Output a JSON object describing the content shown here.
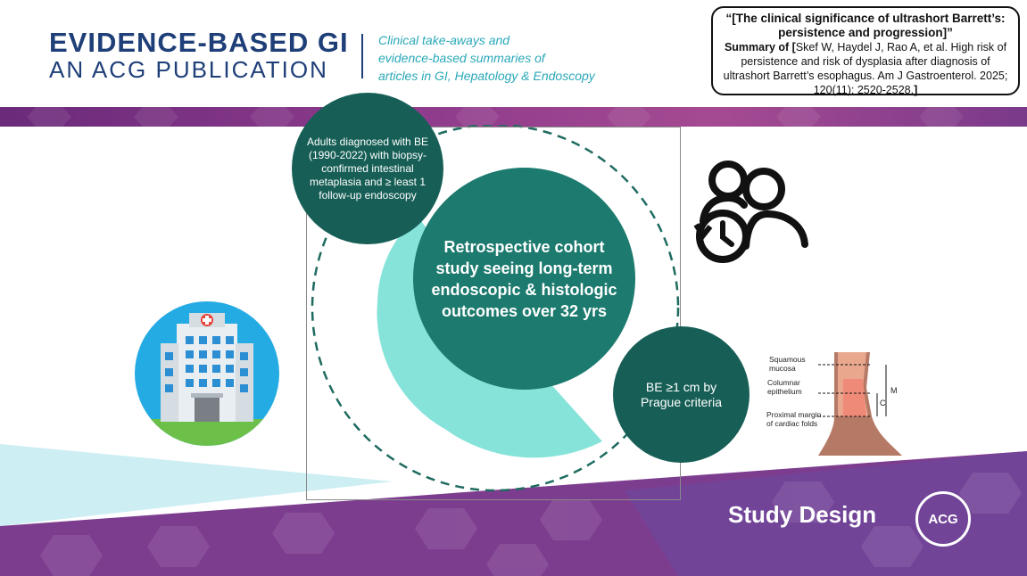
{
  "header": {
    "brand_line1": "EVIDENCE-BASED GI",
    "brand_line2": "AN ACG PUBLICATION",
    "tagline": [
      "Clinical take-aways and",
      "evidence-based summaries of",
      "articles in GI, Hepatology & Endoscopy"
    ]
  },
  "citation": {
    "title": "“[The clinical significance of ultrashort Barrett’s: persistence and progression]”",
    "summary_prefix": "Summary of",
    "open_bracket": "[",
    "body": "Skef W, Haydel J, Rao A, et al. High risk of persistence and risk of dysplasia after diagnosis of ultrashort Barrett’s esophagus. Am J Gastroenterol. 2025; 120(11): 2520-2528.",
    "close_bracket": "]"
  },
  "circles": {
    "adults": "Adults diagnosed  with BE (1990-2022) with biopsy-confirmed intestinal metaplasia and ≥ least 1 follow-up endoscopy",
    "main": "Retrospective cohort study seeing long-term endoscopic & histologic outcomes over 32 yrs",
    "prague": "BE ≥1 cm by Prague criteria"
  },
  "anatomy": {
    "squamous": [
      "Squamous",
      "mucosa"
    ],
    "columnar": [
      "Columnar",
      "epithelium"
    ],
    "proximal": [
      "Proximal margin",
      "of cardiac folds"
    ],
    "label_m": "M",
    "label_c": "C"
  },
  "footer": {
    "study_design": "Study Design",
    "logo_text": "ACG"
  },
  "icons": [
    "hospital-icon",
    "people-clock-icon",
    "esophagus-diagram-icon",
    "acg-logo-icon"
  ],
  "colors": {
    "brand_blue": "#1f3f78",
    "tagline_teal": "#2aa8b8",
    "dark_green": "#175f56",
    "teal_green": "#1c7a6e",
    "light_teal": "#86e3da",
    "purple": "#7a3a8a"
  }
}
